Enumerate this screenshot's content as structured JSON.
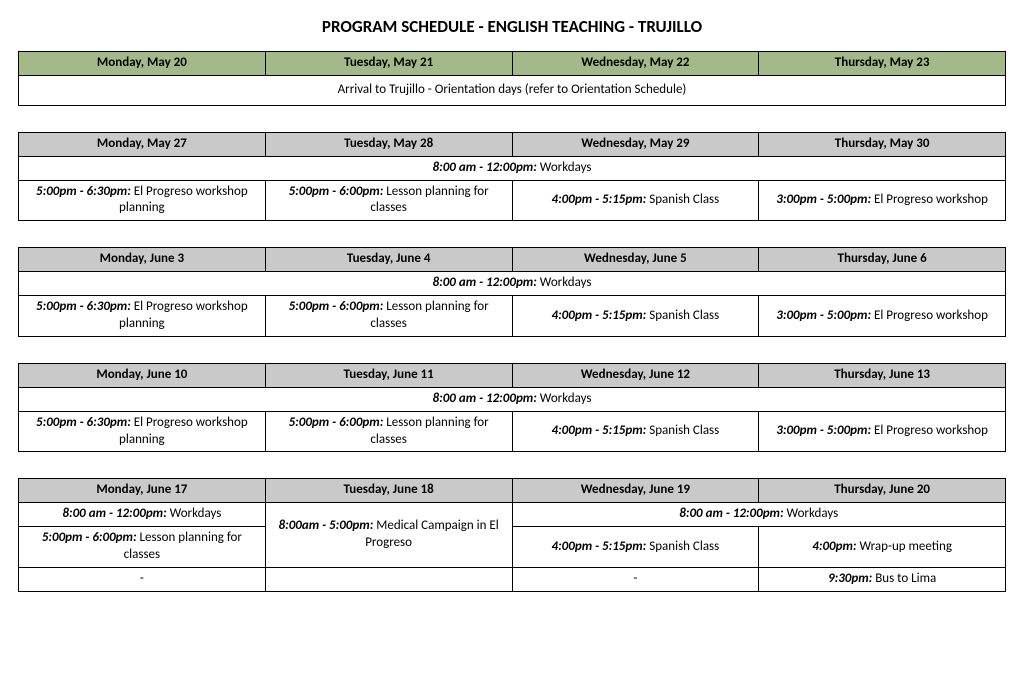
{
  "title": "PROGRAM SCHEDULE - ENGLISH TEACHING - TRUJILLO",
  "colors": {
    "green_header": "#a3b98a",
    "gray_header": "#c9c9c9",
    "border": "#000000",
    "background": "#ffffff",
    "text": "#000000"
  },
  "week1": {
    "days": [
      "Monday, May 20",
      "Tuesday, May 21",
      "Wednesday, May 22",
      "Thursday, May 23"
    ],
    "orientation": "Arrival to Trujillo - Orientation days (refer to Orientation Schedule)"
  },
  "week2": {
    "days": [
      "Monday, May 27",
      "Tuesday, May 28",
      "Wednesday, May 29",
      "Thursday, May 30"
    ],
    "workdays_time": "8:00 am - 12:00pm:",
    "workdays_label": " Workdays",
    "cells": [
      {
        "time": "5:00pm - 6:30pm:",
        "desc": " El Progreso workshop planning"
      },
      {
        "time": "5:00pm - 6:00pm:",
        "desc": " Lesson planning for classes"
      },
      {
        "time": "4:00pm - 5:15pm:",
        "desc": " Spanish Class"
      },
      {
        "time": "3:00pm - 5:00pm:",
        "desc": " El Progreso workshop"
      }
    ]
  },
  "week3": {
    "days": [
      "Monday, June 3",
      "Tuesday, June 4",
      "Wednesday, June 5",
      "Thursday, June 6"
    ],
    "workdays_time": "8:00 am - 12:00pm:",
    "workdays_label": " Workdays",
    "cells": [
      {
        "time": "5:00pm - 6:30pm:",
        "desc": " El Progreso workshop planning"
      },
      {
        "time": "5:00pm - 6:00pm:",
        "desc": " Lesson planning for classes"
      },
      {
        "time": "4:00pm - 5:15pm:",
        "desc": " Spanish Class"
      },
      {
        "time": "3:00pm - 5:00pm:",
        "desc": " El Progreso workshop"
      }
    ]
  },
  "week4": {
    "days": [
      "Monday, June 10",
      "Tuesday, June 11",
      "Wednesday, June 12",
      "Thursday, June 13"
    ],
    "workdays_time": "8:00 am - 12:00pm:",
    "workdays_label": " Workdays",
    "cells": [
      {
        "time": "5:00pm - 6:30pm:",
        "desc": " El Progreso workshop planning"
      },
      {
        "time": "5:00pm - 6:00pm:",
        "desc": " Lesson planning for classes"
      },
      {
        "time": "4:00pm - 5:15pm:",
        "desc": " Spanish Class"
      },
      {
        "time": "3:00pm - 5:00pm:",
        "desc": " El Progreso workshop"
      }
    ]
  },
  "week5": {
    "days": [
      "Monday, June 17",
      "Tuesday, June 18",
      "Wednesday, June 19",
      "Thursday, June 20"
    ],
    "mon_work_time": "8:00 am - 12:00pm:",
    "mon_work_label": " Workdays",
    "wed_thu_work_time": "8:00 am - 12:00pm:",
    "wed_thu_work_label": " Workdays",
    "mon_cell": {
      "time": "5:00pm - 6:00pm:",
      "desc": " Lesson planning for classes"
    },
    "tue_cell": {
      "time": "8:00am - 5:00pm:",
      "desc": " Medical Campaign in El Progreso"
    },
    "wed_cell": {
      "time": "4:00pm - 5:15pm:",
      "desc": " Spanish Class"
    },
    "thu_cell1": {
      "time": "4:00pm:",
      "desc": " Wrap-up meeting"
    },
    "thu_cell2": {
      "time": "9:30pm:",
      "desc": " Bus to Lima"
    },
    "dash": "-"
  }
}
